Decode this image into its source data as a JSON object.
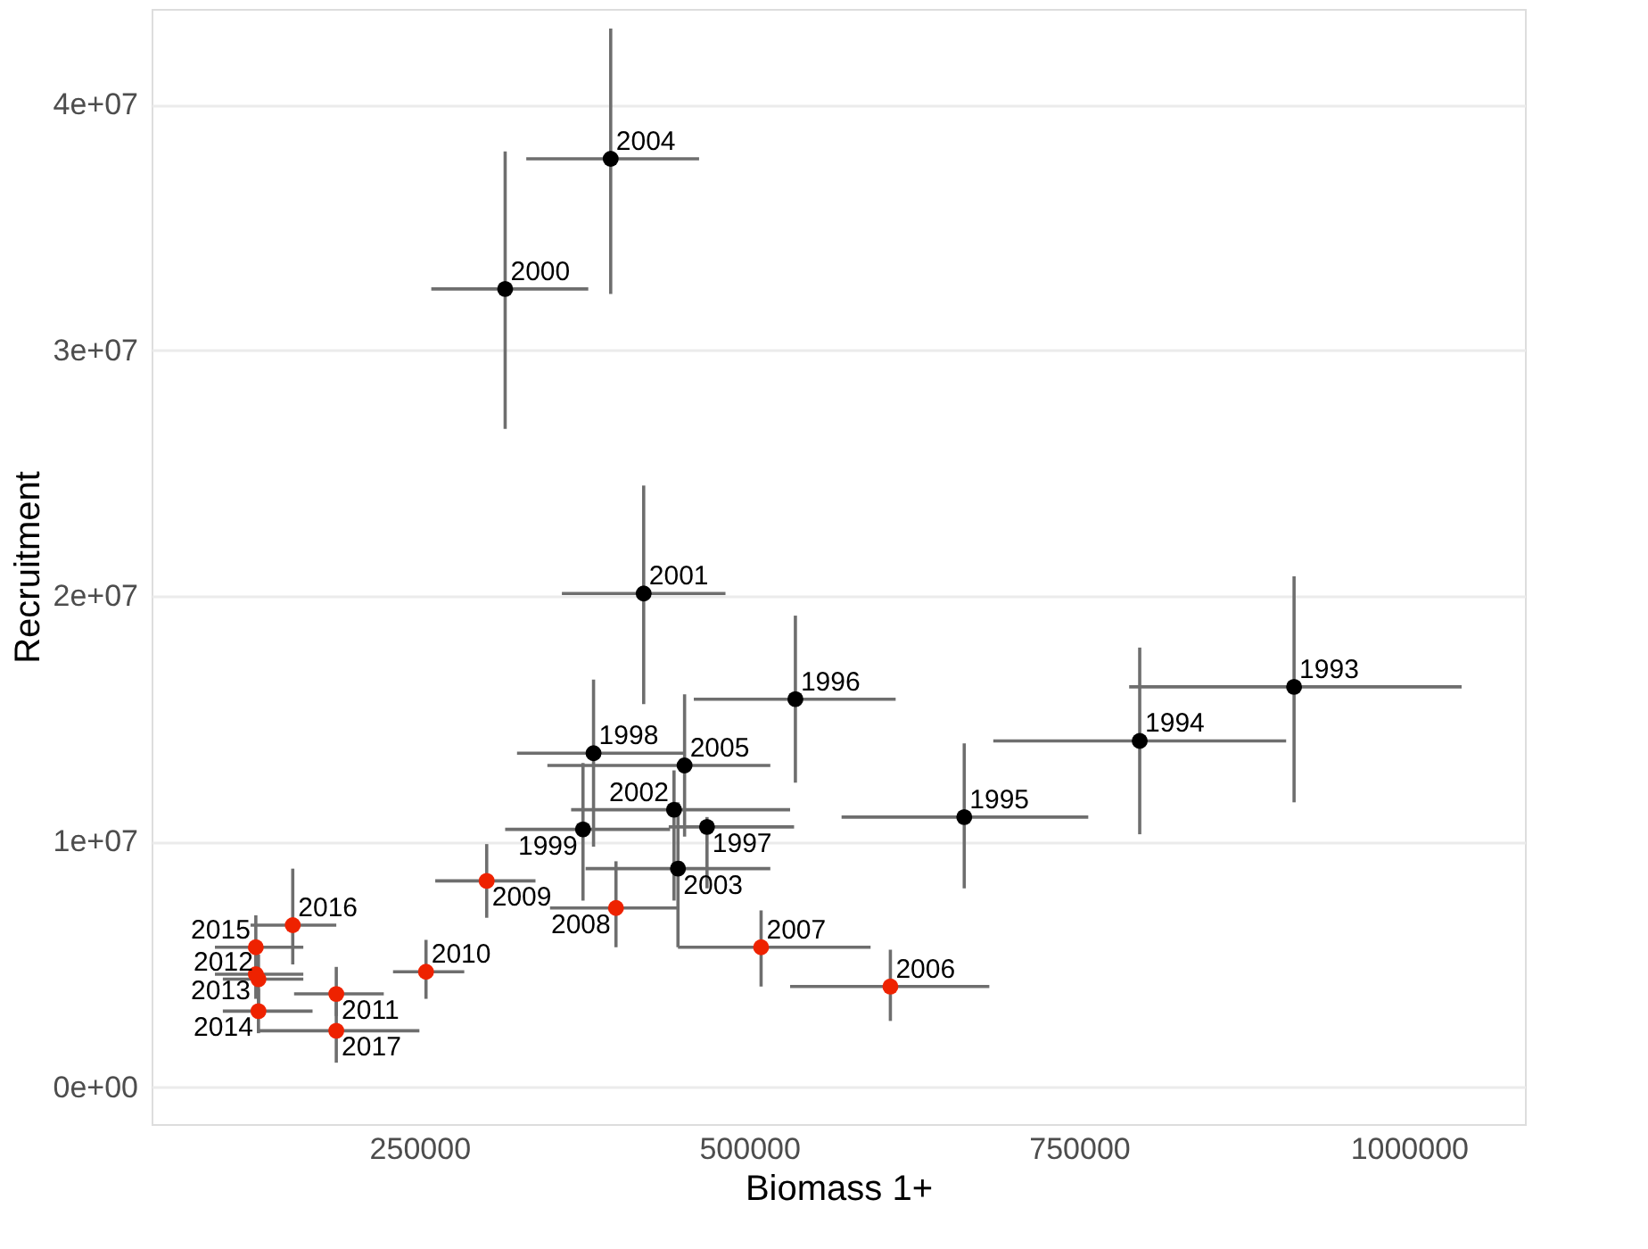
{
  "chart_data": {
    "type": "scatter",
    "xlabel": "Biomass 1+",
    "ylabel": "Recruitment",
    "marker": "circle",
    "grid": "y",
    "xlim": [
      47000,
      1088000
    ],
    "xticks": [
      250000,
      500000,
      750000,
      1000000
    ],
    "ylim": [
      -1500000,
      43900000
    ],
    "yticks": [
      {
        "value": 0,
        "label": "0e+00"
      },
      {
        "value": 10000000,
        "label": "1e+07"
      },
      {
        "value": 20000000,
        "label": "2e+07"
      },
      {
        "value": 30000000,
        "label": "3e+07"
      },
      {
        "value": 40000000,
        "label": "4e+07"
      }
    ],
    "series": [
      {
        "color": "#000000",
        "x": [
          913000,
          796000,
          663000,
          535000,
          468000,
          382000,
          374000,
          315000,
          420000,
          443000,
          446000,
          395000,
          451000
        ],
        "values": [
          16300000,
          14100000,
          11000000,
          15800000,
          10600000,
          13600000,
          10500000,
          32500000,
          20100000,
          11300000,
          8900000,
          37800000,
          13100000
        ],
        "xerrors": [
          [
            788000,
            1040000
          ],
          [
            685000,
            907000
          ],
          [
            570000,
            757000
          ],
          [
            458000,
            611000
          ],
          [
            439000,
            534000
          ],
          [
            324000,
            451000
          ],
          [
            315000,
            440000
          ],
          [
            259000,
            378000
          ],
          [
            358000,
            482000
          ],
          [
            365000,
            531000
          ],
          [
            376000,
            516000
          ],
          [
            331000,
            462000
          ],
          [
            347000,
            516000
          ]
        ],
        "errors": [
          [
            11600000,
            20800000
          ],
          [
            10300000,
            17900000
          ],
          [
            8100000,
            14000000
          ],
          [
            12400000,
            19200000
          ],
          [
            8100000,
            11000000
          ],
          [
            9800000,
            16600000
          ],
          [
            7600000,
            13200000
          ],
          [
            26800000,
            38100000
          ],
          [
            15600000,
            24500000
          ],
          [
            7600000,
            12900000
          ],
          [
            5700000,
            11600000
          ],
          [
            32300000,
            43100000
          ],
          [
            10200000,
            16000000
          ]
        ],
        "name": null
      },
      {
        "color": "#ee2200",
        "x": [
          607000,
          509000,
          399000,
          301000,
          255000,
          187000,
          128000,
          126000,
          128000,
          126000,
          154000,
          187000
        ],
        "values": [
          4100000,
          5700000,
          7300000,
          8400000,
          4700000,
          3800000,
          4400000,
          4600000,
          3100000,
          5700000,
          6600000,
          2300000
        ],
        "xerrors": [
          [
            531000,
            682000
          ],
          [
            446000,
            592000
          ],
          [
            349000,
            446000
          ],
          [
            262000,
            338000
          ],
          [
            230000,
            284000
          ],
          [
            155000,
            223000
          ],
          [
            101000,
            162000
          ],
          [
            95000,
            162000
          ],
          [
            101000,
            169000
          ],
          [
            95000,
            162000
          ],
          [
            122000,
            187000
          ],
          [
            128000,
            250000
          ]
        ],
        "errors": [
          [
            2700000,
            5600000
          ],
          [
            4100000,
            7200000
          ],
          [
            5700000,
            9200000
          ],
          [
            6900000,
            9900000
          ],
          [
            3600000,
            6000000
          ],
          [
            2900000,
            4900000
          ],
          [
            3300000,
            5400000
          ],
          [
            3600000,
            5800000
          ],
          [
            2200000,
            4000000
          ],
          [
            4600000,
            7000000
          ],
          [
            5000000,
            8900000
          ],
          [
            1000000,
            3600000
          ]
        ],
        "name": null
      }
    ],
    "annotations": [
      {
        "text": "1993",
        "x": 913000,
        "y": 16300000
      },
      {
        "text": "1994",
        "x": 796000,
        "y": 14100000
      },
      {
        "text": "1995",
        "x": 663000,
        "y": 11000000
      },
      {
        "text": "1996",
        "x": 535000,
        "y": 15800000
      },
      {
        "text": "1997",
        "x": 468000,
        "y": 10600000
      },
      {
        "text": "1998",
        "x": 382000,
        "y": 13600000
      },
      {
        "text": "1999",
        "x": 374000,
        "y": 10500000
      },
      {
        "text": "2000",
        "x": 315000,
        "y": 32500000
      },
      {
        "text": "2001",
        "x": 420000,
        "y": 20100000
      },
      {
        "text": "2002",
        "x": 443000,
        "y": 11300000
      },
      {
        "text": "2003",
        "x": 446000,
        "y": 8900000
      },
      {
        "text": "2004",
        "x": 395000,
        "y": 37800000
      },
      {
        "text": "2005",
        "x": 451000,
        "y": 13100000
      },
      {
        "text": "2006",
        "x": 607000,
        "y": 4100000
      },
      {
        "text": "2007",
        "x": 509000,
        "y": 5700000
      },
      {
        "text": "2008",
        "x": 399000,
        "y": 7300000
      },
      {
        "text": "2009",
        "x": 301000,
        "y": 8400000
      },
      {
        "text": "2010",
        "x": 255000,
        "y": 4700000
      },
      {
        "text": "2011",
        "x": 187000,
        "y": 3800000
      },
      {
        "text": "2012",
        "x": 128000,
        "y": 4400000
      },
      {
        "text": "2013",
        "x": 126000,
        "y": 4600000
      },
      {
        "text": "2014",
        "x": 128000,
        "y": 3100000
      },
      {
        "text": "2015",
        "x": 126000,
        "y": 5700000
      },
      {
        "text": "2016",
        "x": 154000,
        "y": 6600000
      },
      {
        "text": "2017",
        "x": 187000,
        "y": 2300000
      }
    ]
  }
}
